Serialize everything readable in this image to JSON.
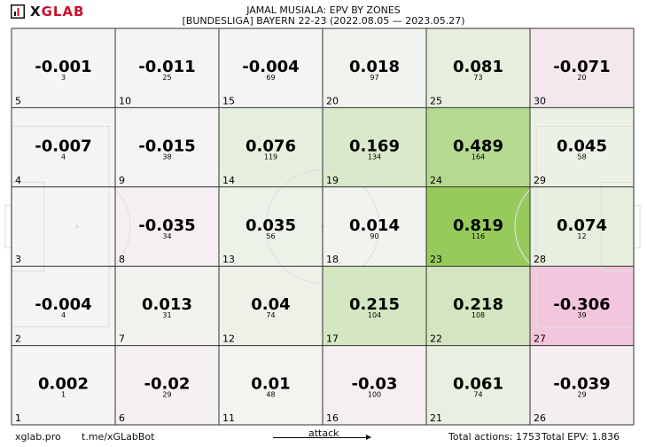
{
  "logo": {
    "text_x": "X",
    "text_rest": "GLAB",
    "icon": "bar-chart-icon"
  },
  "title_line1": "JAMAL MUSIALA: EPV BY ZONES",
  "title_line2": "[BUNDESLIGA] BAYERN 22-23 (2022.08.05 — 2023.05.27)",
  "footer": {
    "site": "xglab.pro",
    "bot": "t.me/xGLabBot",
    "attack": "attack",
    "total_actions": "Total actions: 1753",
    "total_epv": "Total EPV: 1.836"
  },
  "colors": {
    "neutral": "#f5f5f5",
    "positive": "#96cb5c",
    "negative": "#f3c6de",
    "grid": "#333333",
    "pitch_lines": "#e0e0e0"
  },
  "chart_data": {
    "type": "heatmap",
    "grid": {
      "columns": 6,
      "rows": 5
    },
    "zones": [
      {
        "zone": "5",
        "epv": "-0.001",
        "actions": "3",
        "col": 0,
        "row": 0
      },
      {
        "zone": "10",
        "epv": "-0.011",
        "actions": "25",
        "col": 1,
        "row": 0
      },
      {
        "zone": "15",
        "epv": "-0.004",
        "actions": "69",
        "col": 2,
        "row": 0
      },
      {
        "zone": "20",
        "epv": "0.018",
        "actions": "97",
        "col": 3,
        "row": 0
      },
      {
        "zone": "25",
        "epv": "0.081",
        "actions": "73",
        "col": 4,
        "row": 0
      },
      {
        "zone": "30",
        "epv": "-0.071",
        "actions": "20",
        "col": 5,
        "row": 0
      },
      {
        "zone": "4",
        "epv": "-0.007",
        "actions": "4",
        "col": 0,
        "row": 1
      },
      {
        "zone": "9",
        "epv": "-0.015",
        "actions": "38",
        "col": 1,
        "row": 1
      },
      {
        "zone": "14",
        "epv": "0.076",
        "actions": "119",
        "col": 2,
        "row": 1
      },
      {
        "zone": "19",
        "epv": "0.169",
        "actions": "134",
        "col": 3,
        "row": 1
      },
      {
        "zone": "24",
        "epv": "0.489",
        "actions": "164",
        "col": 4,
        "row": 1
      },
      {
        "zone": "29",
        "epv": "0.045",
        "actions": "58",
        "col": 5,
        "row": 1
      },
      {
        "zone": "3",
        "epv": "",
        "actions": "",
        "col": 0,
        "row": 2
      },
      {
        "zone": "8",
        "epv": "-0.035",
        "actions": "34",
        "col": 1,
        "row": 2
      },
      {
        "zone": "13",
        "epv": "0.035",
        "actions": "56",
        "col": 2,
        "row": 2
      },
      {
        "zone": "18",
        "epv": "0.014",
        "actions": "90",
        "col": 3,
        "row": 2
      },
      {
        "zone": "23",
        "epv": "0.819",
        "actions": "116",
        "col": 4,
        "row": 2
      },
      {
        "zone": "28",
        "epv": "0.074",
        "actions": "12",
        "col": 5,
        "row": 2
      },
      {
        "zone": "2",
        "epv": "-0.004",
        "actions": "4",
        "col": 0,
        "row": 3
      },
      {
        "zone": "7",
        "epv": "0.013",
        "actions": "31",
        "col": 1,
        "row": 3
      },
      {
        "zone": "12",
        "epv": "0.04",
        "actions": "74",
        "col": 2,
        "row": 3
      },
      {
        "zone": "17",
        "epv": "0.215",
        "actions": "104",
        "col": 3,
        "row": 3
      },
      {
        "zone": "22",
        "epv": "0.218",
        "actions": "108",
        "col": 4,
        "row": 3
      },
      {
        "zone": "27",
        "epv": "-0.306",
        "actions": "39",
        "col": 5,
        "row": 3
      },
      {
        "zone": "1",
        "epv": "0.002",
        "actions": "1",
        "col": 0,
        "row": 4
      },
      {
        "zone": "6",
        "epv": "-0.02",
        "actions": "29",
        "col": 1,
        "row": 4
      },
      {
        "zone": "11",
        "epv": "0.01",
        "actions": "48",
        "col": 2,
        "row": 4
      },
      {
        "zone": "16",
        "epv": "-0.03",
        "actions": "100",
        "col": 3,
        "row": 4
      },
      {
        "zone": "21",
        "epv": "0.061",
        "actions": "74",
        "col": 4,
        "row": 4
      },
      {
        "zone": "26",
        "epv": "-0.039",
        "actions": "29",
        "col": 5,
        "row": 4
      }
    ]
  }
}
